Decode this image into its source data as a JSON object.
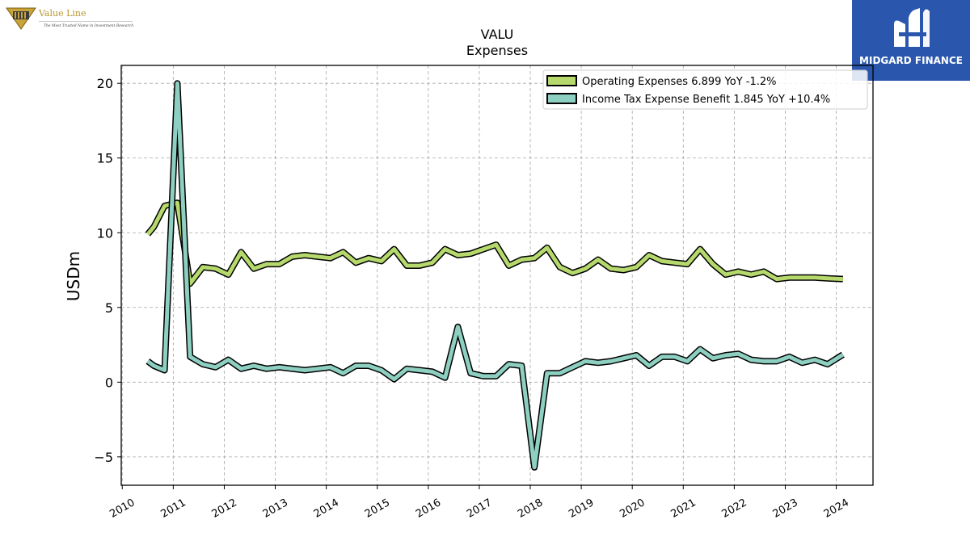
{
  "logos": {
    "left_brand": "Value Line",
    "left_tagline": "The Most Trusted Name in Investment Research",
    "right_brand": "MIDGARD FINANCE"
  },
  "colors": {
    "operating": "#b5d96c",
    "tax": "#8dcfc0",
    "outline": "#000000",
    "right_logo_bg": "#2a57ad"
  },
  "chart_data": {
    "type": "line",
    "title": "VALU",
    "subtitle": "Expenses",
    "ylabel": "USDm",
    "xlabel": "",
    "xlim": [
      2009.98,
      2024.72
    ],
    "ylim": [
      -6.9,
      21.2
    ],
    "xticks": [
      2010,
      2011,
      2012,
      2013,
      2014,
      2015,
      2016,
      2017,
      2018,
      2019,
      2020,
      2021,
      2022,
      2023,
      2024
    ],
    "yticks": [
      -5,
      0,
      5,
      10,
      15,
      20
    ],
    "grid": true,
    "legend_position": "top-right",
    "series": [
      {
        "name": "Operating Expenses  6.899 YoY -1.2%",
        "color": "#b5d96c",
        "x": [
          2010.5,
          2010.62,
          2010.83,
          2011.08,
          2011.33,
          2011.58,
          2011.83,
          2012.08,
          2012.33,
          2012.58,
          2012.83,
          2013.08,
          2013.33,
          2013.58,
          2013.83,
          2014.08,
          2014.33,
          2014.58,
          2014.83,
          2015.08,
          2015.33,
          2015.58,
          2015.83,
          2016.08,
          2016.33,
          2016.58,
          2016.83,
          2017.08,
          2017.33,
          2017.58,
          2017.83,
          2018.08,
          2018.33,
          2018.58,
          2018.83,
          2019.08,
          2019.33,
          2019.58,
          2019.83,
          2020.08,
          2020.33,
          2020.58,
          2020.83,
          2021.08,
          2021.33,
          2021.58,
          2021.83,
          2022.08,
          2022.33,
          2022.58,
          2022.83,
          2023.08,
          2023.33,
          2023.58,
          2023.83,
          2024.13
        ],
        "y": [
          9.9,
          10.4,
          11.8,
          12.0,
          6.6,
          7.7,
          7.6,
          7.2,
          8.7,
          7.6,
          7.9,
          7.9,
          8.4,
          8.5,
          8.4,
          8.3,
          8.7,
          8.0,
          8.3,
          8.1,
          8.9,
          7.8,
          7.8,
          8.0,
          8.9,
          8.5,
          8.6,
          8.9,
          9.2,
          7.8,
          8.2,
          8.3,
          9.0,
          7.7,
          7.3,
          7.6,
          8.2,
          7.6,
          7.5,
          7.7,
          8.5,
          8.1,
          8.0,
          7.9,
          8.9,
          7.9,
          7.2,
          7.4,
          7.2,
          7.4,
          6.9,
          7.0,
          7.0,
          7.0,
          6.95,
          6.9
        ]
      },
      {
        "name": "Income Tax Expense Benefit  1.845 YoY +10.4%",
        "color": "#8dcfc0",
        "x": [
          2010.5,
          2010.62,
          2010.83,
          2011.08,
          2011.33,
          2011.58,
          2011.83,
          2012.08,
          2012.33,
          2012.58,
          2012.83,
          2013.08,
          2013.33,
          2013.58,
          2013.83,
          2014.08,
          2014.33,
          2014.58,
          2014.83,
          2015.08,
          2015.33,
          2015.58,
          2015.83,
          2016.08,
          2016.33,
          2016.58,
          2016.83,
          2017.08,
          2017.33,
          2017.58,
          2017.83,
          2018.08,
          2018.33,
          2018.58,
          2018.83,
          2019.08,
          2019.33,
          2019.58,
          2019.83,
          2020.08,
          2020.33,
          2020.58,
          2020.83,
          2021.08,
          2021.33,
          2021.58,
          2021.83,
          2022.08,
          2022.33,
          2022.58,
          2022.83,
          2023.08,
          2023.33,
          2023.58,
          2023.83,
          2024.13
        ],
        "y": [
          1.4,
          1.1,
          0.8,
          20.0,
          1.7,
          1.2,
          1.0,
          1.5,
          0.9,
          1.1,
          0.9,
          1.0,
          0.9,
          0.8,
          0.9,
          1.0,
          0.6,
          1.1,
          1.1,
          0.8,
          0.2,
          0.9,
          0.8,
          0.7,
          0.3,
          3.7,
          0.6,
          0.4,
          0.4,
          1.2,
          1.1,
          -5.7,
          0.6,
          0.6,
          1.0,
          1.4,
          1.3,
          1.4,
          1.6,
          1.8,
          1.1,
          1.7,
          1.7,
          1.4,
          2.2,
          1.6,
          1.8,
          1.9,
          1.5,
          1.4,
          1.4,
          1.7,
          1.3,
          1.5,
          1.2,
          1.845
        ]
      }
    ]
  }
}
